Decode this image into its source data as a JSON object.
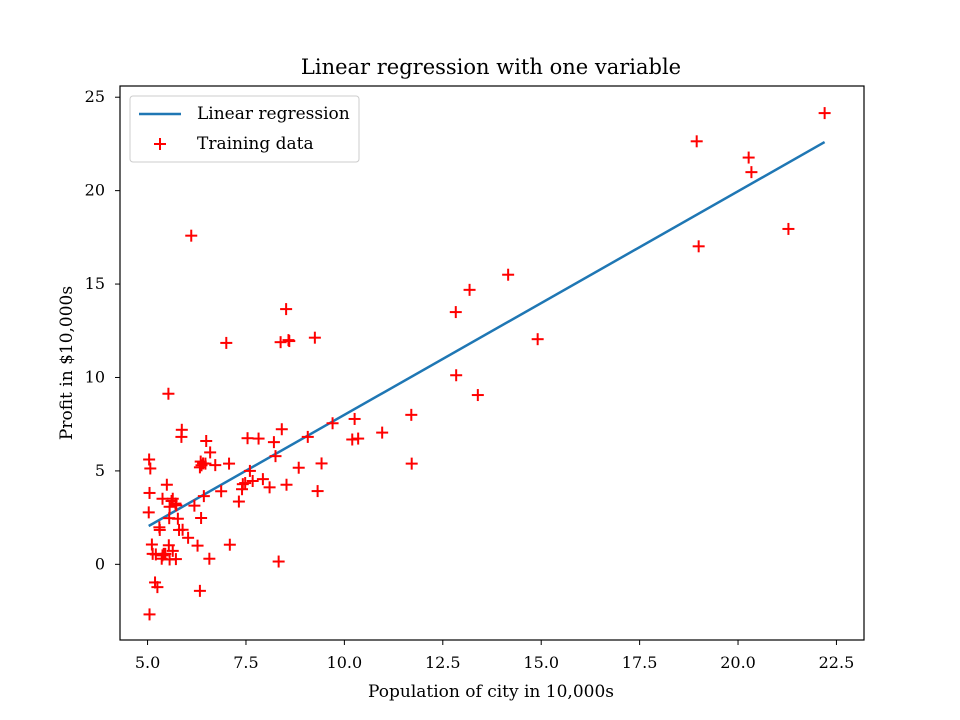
{
  "chart_data": {
    "type": "scatter",
    "title": "Linear regression with one variable",
    "xlabel": "Population of city in 10,000s",
    "ylabel": "Profit in $10,000s",
    "xlim": [
      4.3,
      23.2
    ],
    "ylim": [
      -4.05,
      25.6
    ],
    "xticks": [
      5.0,
      7.5,
      10.0,
      12.5,
      15.0,
      17.5,
      20.0,
      22.5
    ],
    "xtick_labels": [
      "5.0",
      "7.5",
      "10.0",
      "12.5",
      "15.0",
      "17.5",
      "20.0",
      "22.5"
    ],
    "yticks": [
      0,
      5,
      10,
      15,
      20,
      25
    ],
    "ytick_labels": [
      "0",
      "5",
      "10",
      "15",
      "20",
      "25"
    ],
    "grid": false,
    "legend_position": "top-left",
    "series": [
      {
        "name": "Linear regression",
        "type": "line",
        "color": "#1f77b4",
        "x": [
          5.03,
          22.2
        ],
        "y": [
          2.05,
          22.6
        ]
      },
      {
        "name": "Training data",
        "type": "scatter",
        "marker": "+",
        "color": "#ff0000",
        "points": [
          [
            6.11,
            17.59
          ],
          [
            5.53,
            9.13
          ],
          [
            8.52,
            13.66
          ],
          [
            7.0,
            11.85
          ],
          [
            5.86,
            6.82
          ],
          [
            8.38,
            11.89
          ],
          [
            7.48,
            4.35
          ],
          [
            8.58,
            12.0
          ],
          [
            6.49,
            6.6
          ],
          [
            5.05,
            3.82
          ],
          [
            5.71,
            3.25
          ],
          [
            14.16,
            15.5
          ],
          [
            5.73,
            3.16
          ],
          [
            8.41,
            7.23
          ],
          [
            5.64,
            0.72
          ],
          [
            5.38,
            3.51
          ],
          [
            6.37,
            5.3
          ],
          [
            5.13,
            0.56
          ],
          [
            6.43,
            3.65
          ],
          [
            7.07,
            5.39
          ],
          [
            6.19,
            3.14
          ],
          [
            20.27,
            21.77
          ],
          [
            5.49,
            4.26
          ],
          [
            6.33,
            5.19
          ],
          [
            5.56,
            3.08
          ],
          [
            18.95,
            22.64
          ],
          [
            12.83,
            13.5
          ],
          [
            10.96,
            7.05
          ],
          [
            13.18,
            14.69
          ],
          [
            22.2,
            24.15
          ],
          [
            5.25,
            -1.22
          ],
          [
            6.59,
            5.99
          ],
          [
            9.25,
            12.13
          ],
          [
            5.89,
            1.85
          ],
          [
            8.21,
            6.54
          ],
          [
            7.93,
            4.56
          ],
          [
            8.1,
            4.12
          ],
          [
            5.61,
            3.39
          ],
          [
            12.84,
            10.12
          ],
          [
            6.35,
            5.5
          ],
          [
            5.41,
            0.56
          ],
          [
            6.87,
            3.91
          ],
          [
            11.71,
            5.39
          ],
          [
            5.77,
            2.44
          ],
          [
            7.82,
            6.73
          ],
          [
            7.09,
            1.05
          ],
          [
            5.07,
            5.13
          ],
          [
            5.8,
            1.84
          ],
          [
            11.7,
            8.0
          ],
          [
            5.54,
            1.02
          ],
          [
            7.54,
            6.75
          ],
          [
            5.31,
            1.84
          ],
          [
            7.42,
            4.29
          ],
          [
            7.6,
            5.0
          ],
          [
            6.03,
            1.42
          ],
          [
            6.33,
            -1.42
          ],
          [
            6.36,
            2.48
          ],
          [
            6.27,
            1.0
          ],
          [
            5.72,
            0.28
          ],
          [
            5.11,
            1.06
          ],
          [
            6.41,
            5.4
          ],
          [
            6.57,
            0.3
          ],
          [
            5.64,
            3.51
          ],
          [
            5.38,
            0.48
          ],
          [
            5.21,
            0.53
          ],
          [
            5.03,
            2.78
          ],
          [
            5.45,
            0.56
          ],
          [
            6.47,
            5.39
          ],
          [
            5.56,
            0.26
          ],
          [
            5.36,
            0.3
          ],
          [
            6.72,
            5.31
          ],
          [
            5.55,
            2.47
          ],
          [
            5.04,
            5.61
          ],
          [
            5.19,
            -0.97
          ],
          [
            10.26,
            7.78
          ],
          [
            10.35,
            6.73
          ],
          [
            10.2,
            6.68
          ],
          [
            8.33,
            0.15
          ],
          [
            9.07,
            6.82
          ],
          [
            14.91,
            12.05
          ],
          [
            8.6,
            11.95
          ],
          [
            7.32,
            3.36
          ],
          [
            20.34,
            20.99
          ],
          [
            19.0,
            17.02
          ],
          [
            21.28,
            17.95
          ],
          [
            13.39,
            9.06
          ],
          [
            5.05,
            -2.68
          ],
          [
            9.42,
            5.4
          ],
          [
            9.32,
            3.92
          ],
          [
            8.84,
            5.17
          ],
          [
            9.7,
            7.55
          ],
          [
            8.25,
            5.79
          ],
          [
            7.67,
            4.46
          ],
          [
            8.53,
            4.26
          ],
          [
            7.4,
            4.02
          ],
          [
            5.3,
            1.98
          ],
          [
            5.87,
            7.2
          ]
        ]
      }
    ]
  }
}
